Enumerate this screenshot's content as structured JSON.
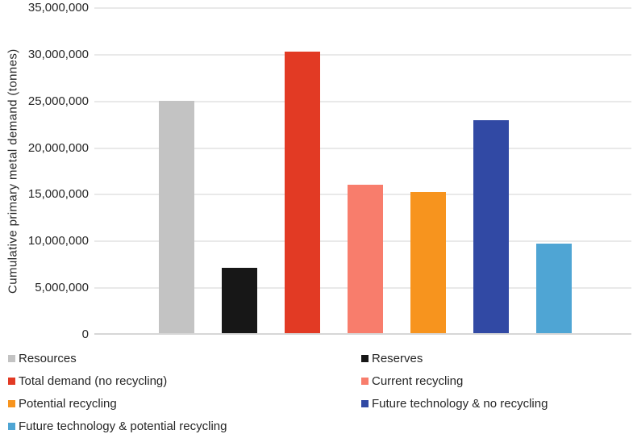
{
  "chart_data": {
    "type": "bar",
    "title": "",
    "xlabel": "",
    "ylabel": "Cumulative primary metal demand (tonnes)",
    "categories": [
      "Resources",
      "Reserves",
      "Total demand (no recycling)",
      "Current recycling",
      "Potential recycling",
      "Future technology & no recycling",
      "Future technology & potential recycling"
    ],
    "values": [
      24900000,
      7000000,
      30200000,
      15900000,
      15100000,
      22800000,
      9600000
    ],
    "bar_colors": [
      "#C3C3C3",
      "#171717",
      "#E23A24",
      "#F87D6C",
      "#F7941E",
      "#3149A4",
      "#4FA5D4"
    ],
    "ylim": [
      0,
      35000000
    ],
    "ytick_step": 5000000,
    "ytick_labels": [
      "0",
      "5,000,000",
      "10,000,000",
      "15,000,000",
      "20,000,000",
      "25,000,000",
      "30,000,000",
      "35,000,000"
    ],
    "grid": true,
    "legend_position": "bottom-two-columns",
    "legend": [
      {
        "label": "Resources",
        "color": "#C3C3C3"
      },
      {
        "label": "Reserves",
        "color": "#171717"
      },
      {
        "label": "Total demand (no recycling)",
        "color": "#E23A24"
      },
      {
        "label": "Current recycling",
        "color": "#F87D6C"
      },
      {
        "label": "Potential recycling",
        "color": "#F7941E"
      },
      {
        "label": "Future technology & no recycling",
        "color": "#3149A4"
      },
      {
        "label": "Future technology & potential recycling",
        "color": "#4FA5D4"
      }
    ]
  },
  "style_colors": {
    "gridline": "#E9E9E9",
    "axis_line": "#D7D7D7",
    "text": "#262626"
  }
}
